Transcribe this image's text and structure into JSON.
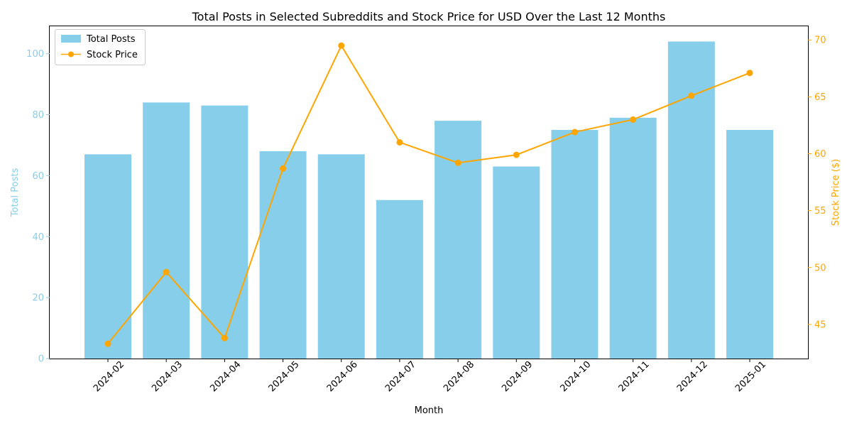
{
  "colors": {
    "bars": "#87ceeb",
    "line": "#ffa500",
    "axis": "#000000"
  },
  "chart_data": {
    "type": "bar",
    "title": "Total Posts in Selected Subreddits and Stock Price for USD Over the Last 12 Months",
    "xlabel": "Month",
    "ylabel_left": "Total Posts",
    "ylabel_right": "Stock Price ($)",
    "categories": [
      "2024-02",
      "2024-03",
      "2024-04",
      "2024-05",
      "2024-06",
      "2024-07",
      "2024-08",
      "2024-09",
      "2024-10",
      "2024-11",
      "2024-12",
      "2025-01"
    ],
    "series": [
      {
        "name": "Total Posts",
        "type": "bar",
        "axis": "left",
        "values": [
          67,
          84,
          83,
          68,
          67,
          52,
          78,
          63,
          75,
          79,
          104,
          75
        ]
      },
      {
        "name": "Stock Price",
        "type": "line",
        "axis": "right",
        "values": [
          43.3,
          49.6,
          43.8,
          58.7,
          69.5,
          61.0,
          59.2,
          59.9,
          61.9,
          63.0,
          65.1,
          67.1
        ]
      }
    ],
    "ylim_left": [
      0,
      109
    ],
    "yticks_left": [
      0,
      20,
      40,
      60,
      80,
      100
    ],
    "ylim_right": [
      42.0,
      71.2
    ],
    "yticks_right": [
      45,
      50,
      55,
      60,
      65,
      70
    ],
    "grid": false,
    "legend_position": "top-left"
  }
}
